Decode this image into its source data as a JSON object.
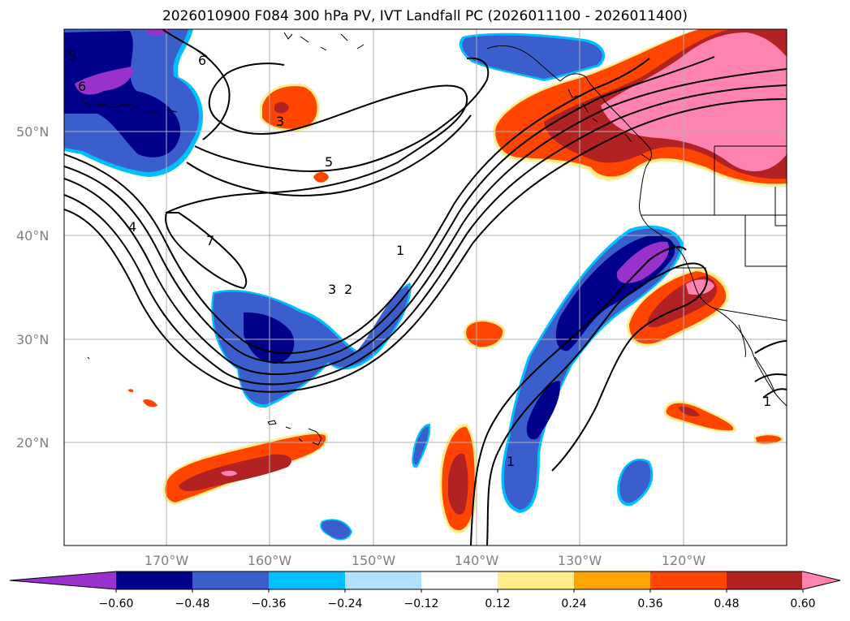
{
  "title": "2026010900 F084 300 hPa PV, IVT Landfall PC (2026011100 - 2026011400)",
  "map": {
    "lat_labels": [
      "50°N",
      "40°N",
      "30°N",
      "20°N"
    ],
    "lon_labels": [
      "170°W",
      "160°W",
      "150°W",
      "140°W",
      "130°W",
      "120°W"
    ],
    "contour_labels": [
      "5",
      "6",
      "6",
      "3",
      "5",
      "4",
      "7",
      "3",
      "2",
      "1",
      "1",
      "1"
    ]
  },
  "colorbar": {
    "colors": [
      "#9932cc",
      "#00008b",
      "#3a5fcd",
      "#00bfff",
      "#b0e2ff",
      "#ffffff",
      "#ffec8b",
      "#ffa500",
      "#ff4500",
      "#b22222",
      "#ff83b0"
    ],
    "ticks": [
      "−0.60",
      "−0.48",
      "−0.36",
      "−0.24",
      "−0.12",
      "0.12",
      "0.24",
      "0.36",
      "0.48",
      "0.60"
    ]
  }
}
